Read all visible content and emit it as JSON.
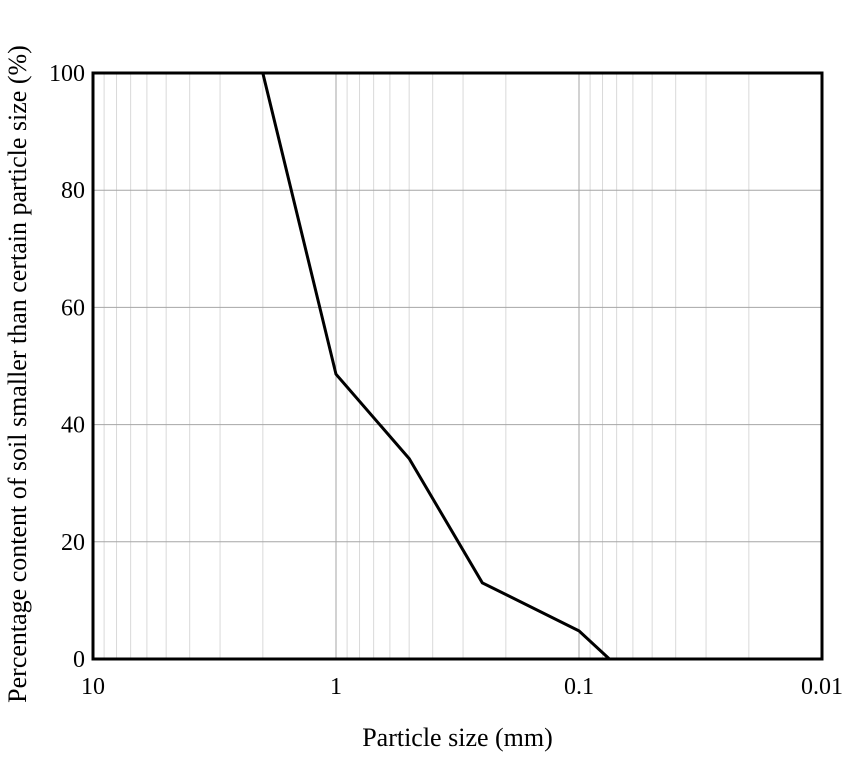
{
  "chart_data": {
    "type": "line",
    "title": "",
    "xlabel": "Particle size (mm)",
    "ylabel": "Percentage content of soil smaller than certain particle size (%)",
    "x_scale": "log",
    "x_reversed": true,
    "xlim": [
      10,
      0.01
    ],
    "ylim": [
      0,
      100
    ],
    "x_ticks": [
      10,
      1,
      0.1,
      0.01
    ],
    "x_tick_labels": [
      "10",
      "1",
      "0.1",
      "0.01"
    ],
    "y_ticks": [
      0,
      20,
      40,
      60,
      80,
      100
    ],
    "y_tick_labels": [
      "0",
      "20",
      "40",
      "60",
      "80",
      "100"
    ],
    "grid": true,
    "series": [
      {
        "x": [
          2.0,
          1.0,
          0.5,
          0.25,
          0.1,
          0.075
        ],
        "y": [
          100,
          48.6,
          34.2,
          13.0,
          4.8,
          0.0
        ]
      }
    ]
  },
  "colors": {
    "line": "#000000",
    "major_grid": "#a6a6a6",
    "minor_grid": "#d9d9d9",
    "frame": "#000000"
  }
}
